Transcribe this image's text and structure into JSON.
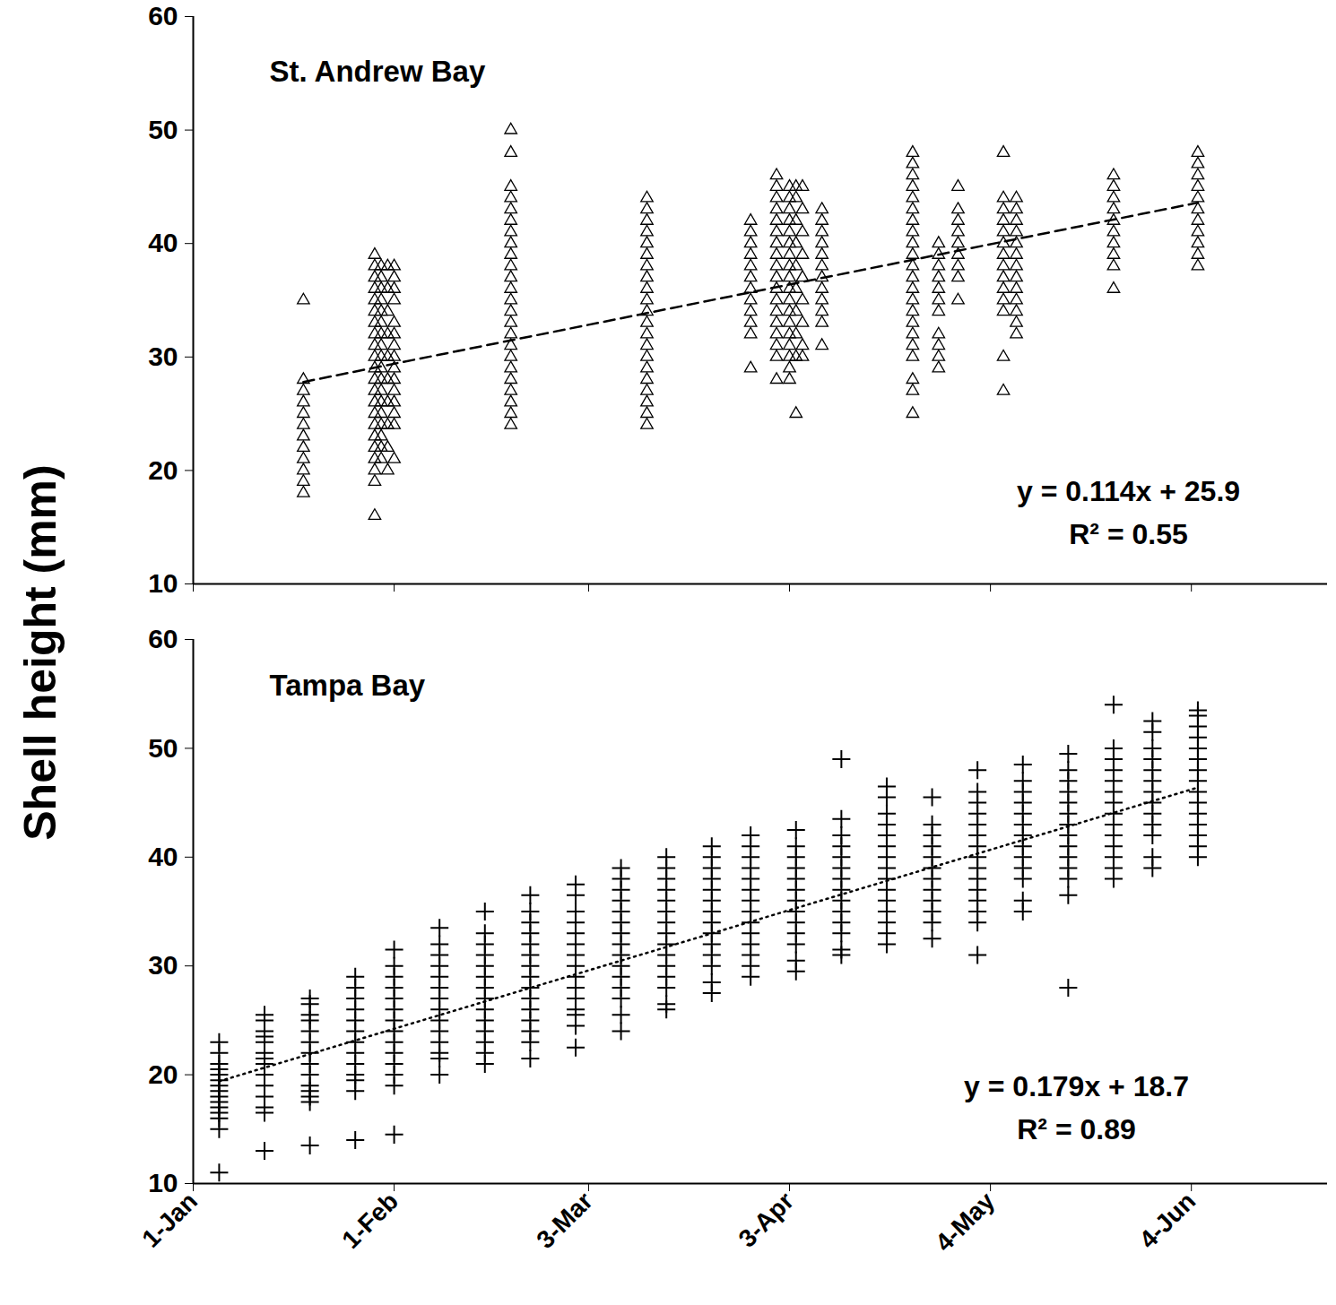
{
  "chart_data": [
    {
      "type": "scatter",
      "title": "St. Andrew Bay",
      "ylabel": "Shell height (mm)",
      "xlim": [
        0,
        175
      ],
      "xticks": [
        0,
        31,
        61,
        92,
        123,
        154
      ],
      "ylim": [
        10,
        60
      ],
      "yticks": [
        10,
        20,
        30,
        40,
        50,
        60
      ],
      "tick_labels": "y",
      "annotations": [
        "y = 0.114x + 25.9",
        "R² = 0.55"
      ],
      "series": [
        {
          "type": "scatter",
          "marker": "triangle",
          "x": [
            17,
            28,
            29,
            30,
            31,
            49,
            70,
            86,
            90,
            92,
            93,
            94,
            97,
            111,
            115,
            118,
            125,
            127,
            142,
            155
          ],
          "values": [
            [
              35,
              28,
              27,
              26,
              25,
              24,
              23,
              22,
              21,
              20,
              19,
              18
            ],
            [
              16,
              19,
              20,
              21,
              22,
              23,
              24,
              25,
              26,
              27,
              28,
              29,
              30,
              31,
              32,
              33,
              34,
              35,
              36,
              37,
              38,
              39
            ],
            [
              21,
              22,
              23,
              24,
              25,
              26,
              27,
              28,
              29,
              30,
              31,
              32,
              33,
              34,
              35,
              36,
              37,
              38
            ],
            [
              20,
              22,
              24,
              26,
              28,
              30,
              32,
              34,
              36,
              38
            ],
            [
              21,
              24,
              25,
              26,
              27,
              28,
              29,
              30,
              31,
              32,
              33,
              35,
              36,
              37,
              38
            ],
            [
              24,
              25,
              26,
              27,
              28,
              29,
              30,
              31,
              32,
              33,
              34,
              35,
              36,
              37,
              38,
              39,
              40,
              41,
              42,
              43,
              44,
              45,
              48,
              50
            ],
            [
              24,
              25,
              26,
              27,
              28,
              29,
              30,
              31,
              32,
              33,
              34,
              35,
              36,
              37,
              38,
              39,
              40,
              41,
              42,
              43,
              44
            ],
            [
              29,
              32,
              33,
              34,
              35,
              36,
              37,
              38,
              39,
              40,
              41,
              42
            ],
            [
              28,
              30,
              31,
              32,
              33,
              34,
              35,
              36,
              37,
              38,
              39,
              40,
              41,
              42,
              43,
              44,
              45,
              46
            ],
            [
              28,
              29,
              30,
              31,
              32,
              33,
              34,
              35,
              36,
              37,
              38,
              39,
              40,
              41,
              42,
              43,
              44,
              45
            ],
            [
              25,
              30,
              32,
              34,
              36,
              38,
              40,
              42,
              44,
              45
            ],
            [
              30,
              31,
              33,
              35,
              37,
              39,
              41,
              43,
              45
            ],
            [
              31,
              33,
              34,
              35,
              36,
              37,
              38,
              39,
              40,
              41,
              42,
              43
            ],
            [
              25,
              27,
              28,
              30,
              31,
              32,
              33,
              34,
              35,
              36,
              37,
              38,
              39,
              40,
              41,
              42,
              43,
              44,
              45,
              46,
              47,
              48
            ],
            [
              29,
              30,
              31,
              32,
              34,
              35,
              36,
              37,
              38,
              39,
              40
            ],
            [
              35,
              37,
              38,
              39,
              40,
              41,
              42,
              43,
              45
            ],
            [
              27,
              30,
              34,
              35,
              36,
              37,
              38,
              39,
              40,
              41,
              42,
              43,
              44,
              48
            ],
            [
              32,
              33,
              34,
              35,
              36,
              37,
              38,
              39,
              40,
              41,
              42,
              43,
              44
            ],
            [
              36,
              38,
              39,
              40,
              41,
              42,
              43,
              44,
              45,
              46
            ],
            [
              38,
              39,
              40,
              41,
              42,
              43,
              44,
              45,
              46,
              47,
              48
            ]
          ]
        },
        {
          "type": "line",
          "line_style": "dashed",
          "x": [
            17,
            155
          ],
          "values": [
            27.8,
            43.6
          ]
        }
      ]
    },
    {
      "type": "scatter",
      "title": "Tampa Bay",
      "xlim": [
        0,
        175
      ],
      "xticks": [
        {
          "value": 0,
          "label": "1-Jan"
        },
        {
          "value": 31,
          "label": "1-Feb"
        },
        {
          "value": 61,
          "label": "3-Mar"
        },
        {
          "value": 92,
          "label": "3-Apr"
        },
        {
          "value": 123,
          "label": "4-May"
        },
        {
          "value": 154,
          "label": "4-Jun"
        }
      ],
      "ylim": [
        10,
        60
      ],
      "yticks": [
        10,
        20,
        30,
        40,
        50,
        60
      ],
      "annotations": [
        "y = 0.179x + 18.7",
        "R² = 0.89"
      ],
      "series": [
        {
          "type": "scatter",
          "marker": "plus",
          "x": [
            4,
            11,
            18,
            25,
            31,
            38,
            45,
            52,
            59,
            66,
            73,
            80,
            86,
            93,
            100,
            107,
            114,
            121,
            128,
            135,
            142,
            148,
            155
          ],
          "values": [
            [
              11,
              15,
              16,
              16.5,
              17,
              17.5,
              18,
              18.5,
              19,
              19.5,
              20,
              20.5,
              21,
              22,
              23
            ],
            [
              13,
              16.5,
              17,
              18,
              19,
              20,
              21,
              21.5,
              22,
              23,
              23.5,
              24,
              25,
              25.5
            ],
            [
              13.5,
              17.5,
              18,
              18.5,
              19,
              20,
              21,
              22,
              23,
              24,
              25,
              25.5,
              26.5,
              27
            ],
            [
              14,
              18.5,
              19.5,
              20,
              21,
              22,
              23,
              24,
              25,
              26,
              27,
              28,
              29
            ],
            [
              14.5,
              19,
              20,
              21,
              22,
              23,
              24,
              25,
              26,
              27,
              28,
              29,
              30,
              31.5
            ],
            [
              20,
              21.5,
              22,
              23,
              24,
              25,
              26,
              27,
              28,
              29,
              30,
              31,
              32,
              33.5
            ],
            [
              21,
              22,
              23,
              24,
              25,
              26,
              27,
              28,
              29,
              30,
              31,
              32,
              33,
              35
            ],
            [
              21.5,
              23,
              24,
              25,
              26,
              27,
              28,
              29,
              30,
              31,
              32,
              33,
              34,
              35,
              36.5
            ],
            [
              22.5,
              24.5,
              25.5,
              26,
              27,
              28,
              29,
              30,
              31,
              32,
              33,
              34,
              35,
              36.5,
              37.5
            ],
            [
              24,
              25.5,
              27,
              28,
              29,
              30,
              31,
              32,
              33,
              34,
              35,
              36,
              37,
              38,
              39
            ],
            [
              26,
              26.5,
              28,
              29,
              30,
              31,
              32,
              33,
              34,
              35,
              36,
              37,
              38,
              39,
              40
            ],
            [
              27.5,
              28.5,
              30,
              31,
              32,
              33,
              34,
              35,
              36,
              37,
              38,
              39,
              40,
              41
            ],
            [
              29,
              30,
              31,
              32,
              33,
              34,
              35,
              36,
              37,
              38,
              39,
              40,
              41,
              42
            ],
            [
              29.5,
              30.5,
              32,
              33,
              34,
              35,
              36,
              37,
              38,
              39,
              40,
              41,
              42.5
            ],
            [
              31,
              31.5,
              33,
              34,
              35,
              36,
              37,
              38,
              39,
              40,
              41,
              42,
              43.5,
              49
            ],
            [
              32,
              33,
              34,
              35,
              36,
              37,
              38,
              39,
              40,
              41,
              42,
              43,
              44,
              45.5,
              46.5
            ],
            [
              32.5,
              34,
              35,
              36,
              37,
              38,
              39,
              40,
              41,
              42,
              43,
              45.5
            ],
            [
              31,
              34,
              35,
              36,
              37,
              38,
              39,
              40,
              41,
              42,
              43,
              44,
              45,
              46,
              48
            ],
            [
              35,
              36,
              38,
              39,
              40,
              41,
              42,
              43,
              44,
              45,
              46,
              47,
              48.5
            ],
            [
              28,
              36.5,
              38,
              39,
              40,
              41,
              42,
              43,
              44,
              45,
              46,
              47,
              48,
              49.5
            ],
            [
              38,
              39,
              40,
              41,
              42,
              43,
              44,
              45,
              46,
              47,
              48,
              49,
              50,
              54
            ],
            [
              39,
              40,
              42,
              43,
              44,
              45,
              46,
              47,
              48,
              49,
              50,
              51.5,
              52.5
            ],
            [
              40,
              41,
              42,
              43,
              44,
              45,
              46,
              47,
              48,
              49,
              50,
              51,
              52,
              53,
              53.5
            ]
          ]
        },
        {
          "type": "line",
          "line_style": "dotted",
          "x": [
            4,
            155
          ],
          "values": [
            19.4,
            46.4
          ]
        }
      ]
    }
  ]
}
